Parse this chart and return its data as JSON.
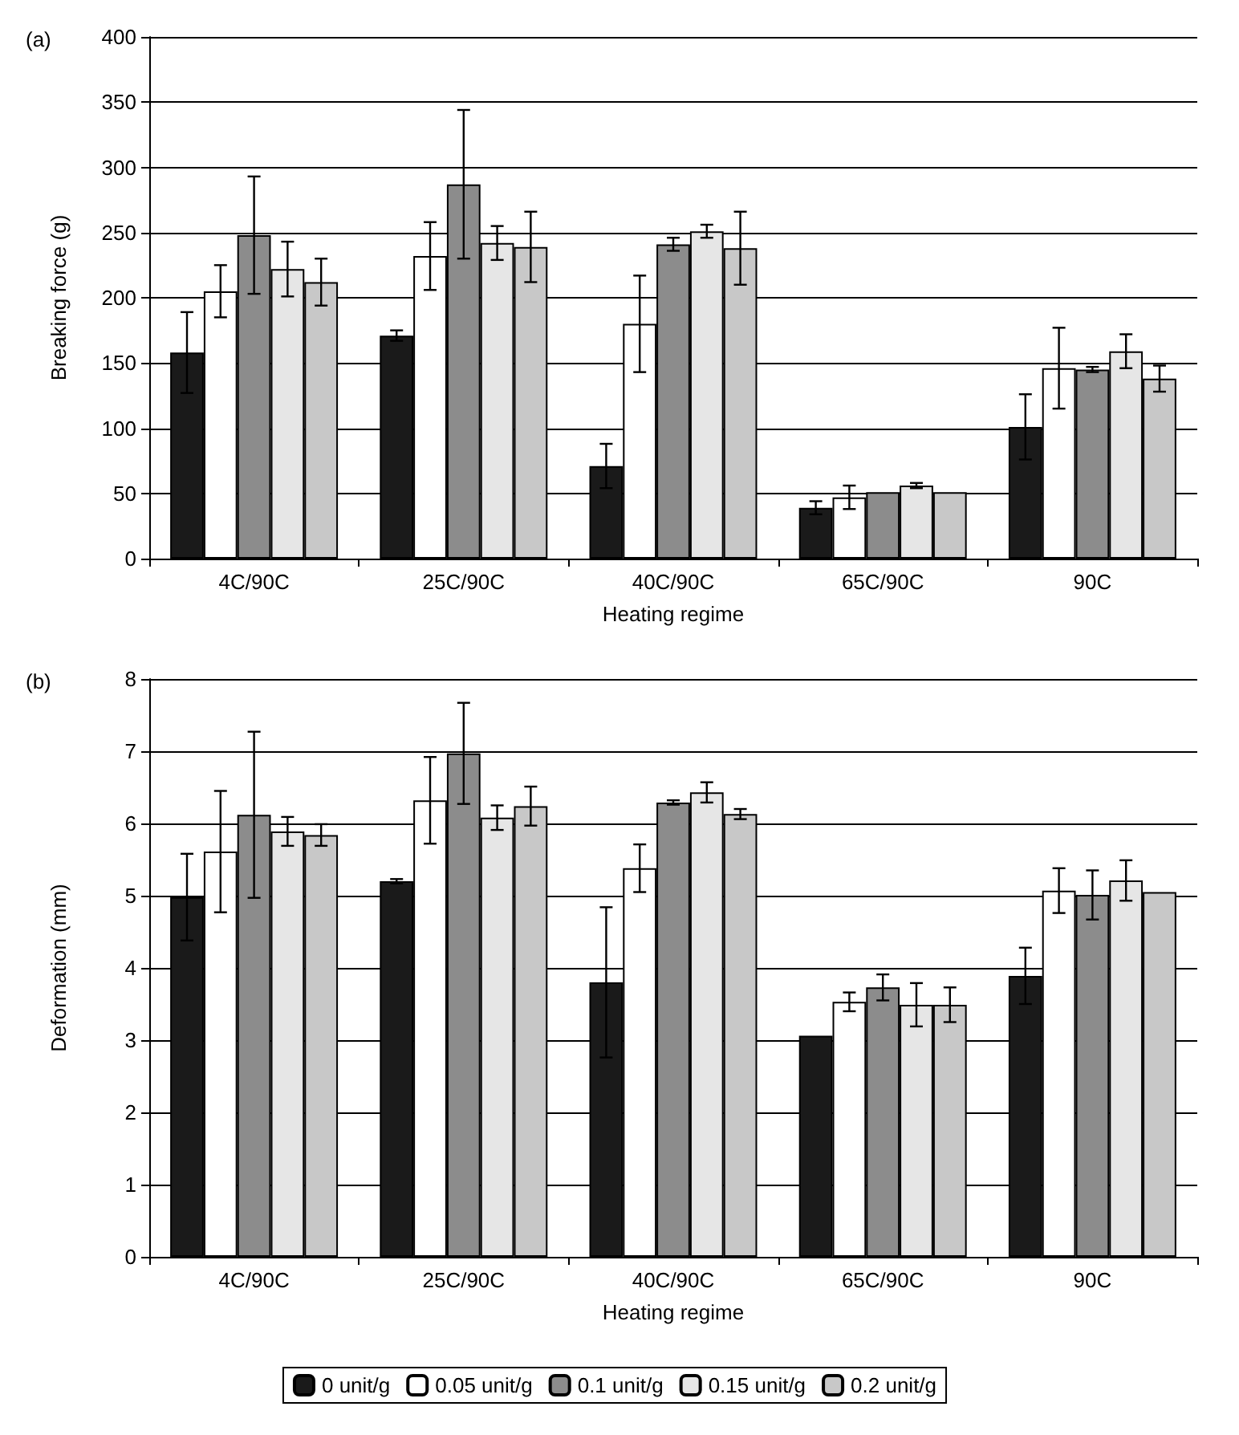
{
  "chart_data": [
    {
      "type": "bar",
      "categories": [
        "4C/90C",
        "25C/90C",
        "40C/90C",
        "65C/90C",
        "90C"
      ],
      "xlabel": "Heating regime",
      "ylabel": "Breaking force (g)",
      "annotations": [
        "(a)"
      ],
      "ylim": [
        0,
        400
      ],
      "yticks": [
        0,
        50,
        100,
        150,
        200,
        250,
        300,
        350,
        400
      ],
      "grid": "y",
      "legend": false,
      "series": [
        {
          "color": "#1a1a1a",
          "values": [
            158,
            171,
            71,
            39,
            101
          ],
          "errors": [
            31,
            4,
            17,
            5,
            25
          ]
        },
        {
          "color": "#ffffff",
          "values": [
            205,
            232,
            180,
            47,
            146
          ],
          "errors": [
            20,
            26,
            37,
            9,
            31
          ]
        },
        {
          "color": "#8c8c8c",
          "values": [
            248,
            287,
            241,
            51,
            145
          ],
          "errors": [
            45,
            57,
            5,
            null,
            2
          ]
        },
        {
          "color": "#e6e6e6",
          "values": [
            222,
            242,
            251,
            56,
            159
          ],
          "errors": [
            21,
            13,
            5,
            2,
            13
          ]
        },
        {
          "color": "#c8c8c8",
          "values": [
            212,
            239,
            238,
            51,
            138
          ],
          "errors": [
            18,
            27,
            28,
            null,
            10
          ]
        }
      ]
    },
    {
      "type": "bar",
      "categories": [
        "4C/90C",
        "25C/90C",
        "40C/90C",
        "65C/90C",
        "90C"
      ],
      "xlabel": "Heating regime",
      "ylabel": "Deformation (mm)",
      "annotations": [
        "(b)"
      ],
      "ylim": [
        0,
        8
      ],
      "yticks": [
        0,
        1,
        2,
        3,
        4,
        5,
        6,
        7,
        8
      ],
      "grid": "y",
      "legend": "bottom",
      "series": [
        {
          "name": "0 unit/g",
          "color": "#1a1a1a",
          "values": [
            4.98,
            5.2,
            3.8,
            3.06,
            3.89
          ],
          "errors": [
            0.6,
            0.03,
            1.04,
            null,
            0.39
          ]
        },
        {
          "name": "0.05 unit/g",
          "color": "#ffffff",
          "values": [
            5.61,
            6.32,
            5.38,
            3.53,
            5.07
          ],
          "errors": [
            0.84,
            0.6,
            0.33,
            0.13,
            0.31
          ]
        },
        {
          "name": "0.1 unit/g",
          "color": "#8c8c8c",
          "values": [
            6.12,
            6.97,
            6.29,
            3.73,
            5.01
          ],
          "errors": [
            1.15,
            0.7,
            0.03,
            0.18,
            0.34
          ]
        },
        {
          "name": "0.15 unit/g",
          "color": "#e6e6e6",
          "values": [
            5.89,
            6.08,
            6.43,
            3.49,
            5.21
          ],
          "errors": [
            0.2,
            0.17,
            0.14,
            0.3,
            0.28
          ]
        },
        {
          "name": "0.2 unit/g",
          "color": "#c8c8c8",
          "values": [
            5.84,
            6.24,
            6.13,
            3.49,
            5.05
          ],
          "errors": [
            0.15,
            0.27,
            0.07,
            0.24,
            null
          ]
        }
      ]
    }
  ]
}
